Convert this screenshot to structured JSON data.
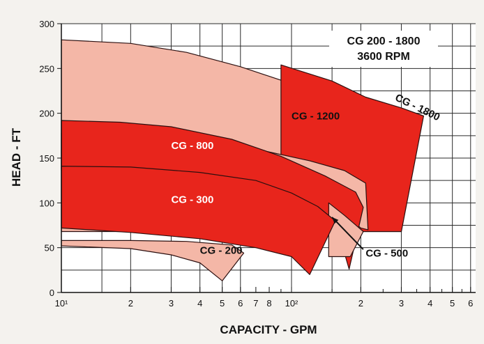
{
  "chart_data": {
    "type": "area",
    "title": "CG 200 - 1800",
    "subtitle": "3600 RPM",
    "xlabel": "CAPACITY - GPM",
    "ylabel": "HEAD - FT",
    "x_scale": "log",
    "xlim": [
      10,
      650
    ],
    "ylim": [
      0,
      300
    ],
    "grid": true,
    "x_ticks": [
      "10¹",
      "2",
      "3",
      "4",
      "5",
      "6",
      "7",
      "8",
      "10²",
      "2",
      "3",
      "4",
      "5",
      "6"
    ],
    "y_ticks": [
      "0",
      "50",
      "100",
      "150",
      "200",
      "250",
      "300"
    ],
    "colors": {
      "light": "#f4b7a7",
      "dark": "#e8251c",
      "outline": "#2b0f0f",
      "grid": "#2a2a2a"
    },
    "series": [
      {
        "name": "CG - 1800",
        "color": "light",
        "upper": [
          [
            10,
            282
          ],
          [
            20,
            278
          ],
          [
            35,
            268
          ],
          [
            60,
            252
          ],
          [
            100,
            233
          ],
          [
            150,
            219
          ],
          [
            210,
            206
          ],
          [
            300,
            194
          ]
        ],
        "end": [
          300,
          68
        ],
        "lower": null
      },
      {
        "name": "CG - 1800",
        "color": "dark",
        "upper": [
          [
            90,
            254
          ],
          [
            150,
            236
          ],
          [
            210,
            218
          ],
          [
            300,
            206
          ],
          [
            375,
            197
          ]
        ],
        "end": [
          300,
          68
        ],
        "lower": null
      },
      {
        "name": "CG - 1200",
        "color": "light",
        "upper": [
          [
            10,
            178
          ],
          [
            20,
            176
          ],
          [
            40,
            170
          ],
          [
            70,
            160
          ],
          [
            120,
            147
          ],
          [
            170,
            136
          ],
          [
            210,
            122
          ]
        ],
        "end": [
          215,
          70
        ],
        "lower": [
          [
            200,
            72
          ],
          [
            170,
            88
          ],
          [
            130,
            103
          ],
          [
            90,
            117
          ],
          [
            50,
            127
          ],
          [
            25,
            133
          ],
          [
            10,
            136
          ]
        ]
      },
      {
        "name": "CG - 800",
        "color": "dark",
        "upper": [
          [
            10,
            192
          ],
          [
            18,
            190
          ],
          [
            30,
            185
          ],
          [
            55,
            171
          ],
          [
            90,
            152
          ],
          [
            140,
            130
          ],
          [
            190,
            112
          ],
          [
            205,
            95
          ]
        ],
        "end": [
          178,
          26
        ],
        "lower": [
          [
            165,
            55
          ],
          [
            140,
            82
          ],
          [
            105,
            104
          ],
          [
            70,
            118
          ],
          [
            40,
            128
          ],
          [
            20,
            135
          ],
          [
            10,
            138
          ]
        ]
      },
      {
        "name": "CG - 500",
        "color": "light",
        "upper": [
          [
            145,
            100
          ],
          [
            170,
            86
          ],
          [
            205,
            68
          ]
        ],
        "end": [
          180,
          40
        ],
        "lower": null
      },
      {
        "name": "CG - 300",
        "color": "dark",
        "upper": [
          [
            10,
            141
          ],
          [
            20,
            140
          ],
          [
            40,
            134
          ],
          [
            70,
            125
          ],
          [
            100,
            111
          ],
          [
            130,
            96
          ],
          [
            155,
            80
          ]
        ],
        "end": [
          120,
          20
        ],
        "lower": [
          [
            100,
            40
          ],
          [
            70,
            50
          ],
          [
            40,
            60
          ],
          [
            20,
            67
          ],
          [
            10,
            72
          ]
        ]
      },
      {
        "name": "CG - 200",
        "color": "light",
        "upper": [
          [
            10,
            58
          ],
          [
            20,
            58
          ],
          [
            35,
            57
          ],
          [
            55,
            53
          ],
          [
            62,
            44
          ]
        ],
        "end": [
          50,
          13
        ],
        "lower": [
          [
            40,
            33
          ],
          [
            30,
            42
          ],
          [
            20,
            49
          ],
          [
            10,
            52
          ]
        ]
      }
    ],
    "labels": [
      {
        "text": "CG - 1800",
        "x": 280,
        "y": 215,
        "color": "#111",
        "rotate": 26
      },
      {
        "text": "CG - 1200",
        "x": 100,
        "y": 193,
        "color": "#111"
      },
      {
        "text": "CG - 800",
        "x": 30,
        "y": 160,
        "color": "#ffffff"
      },
      {
        "text": "CG - 300",
        "x": 30,
        "y": 100,
        "color": "#ffffff"
      },
      {
        "text": "CG - 200",
        "x": 40,
        "y": 43,
        "color": "#111"
      },
      {
        "text": "CG - 500",
        "x": 210,
        "y": 40,
        "color": "#111"
      }
    ]
  }
}
